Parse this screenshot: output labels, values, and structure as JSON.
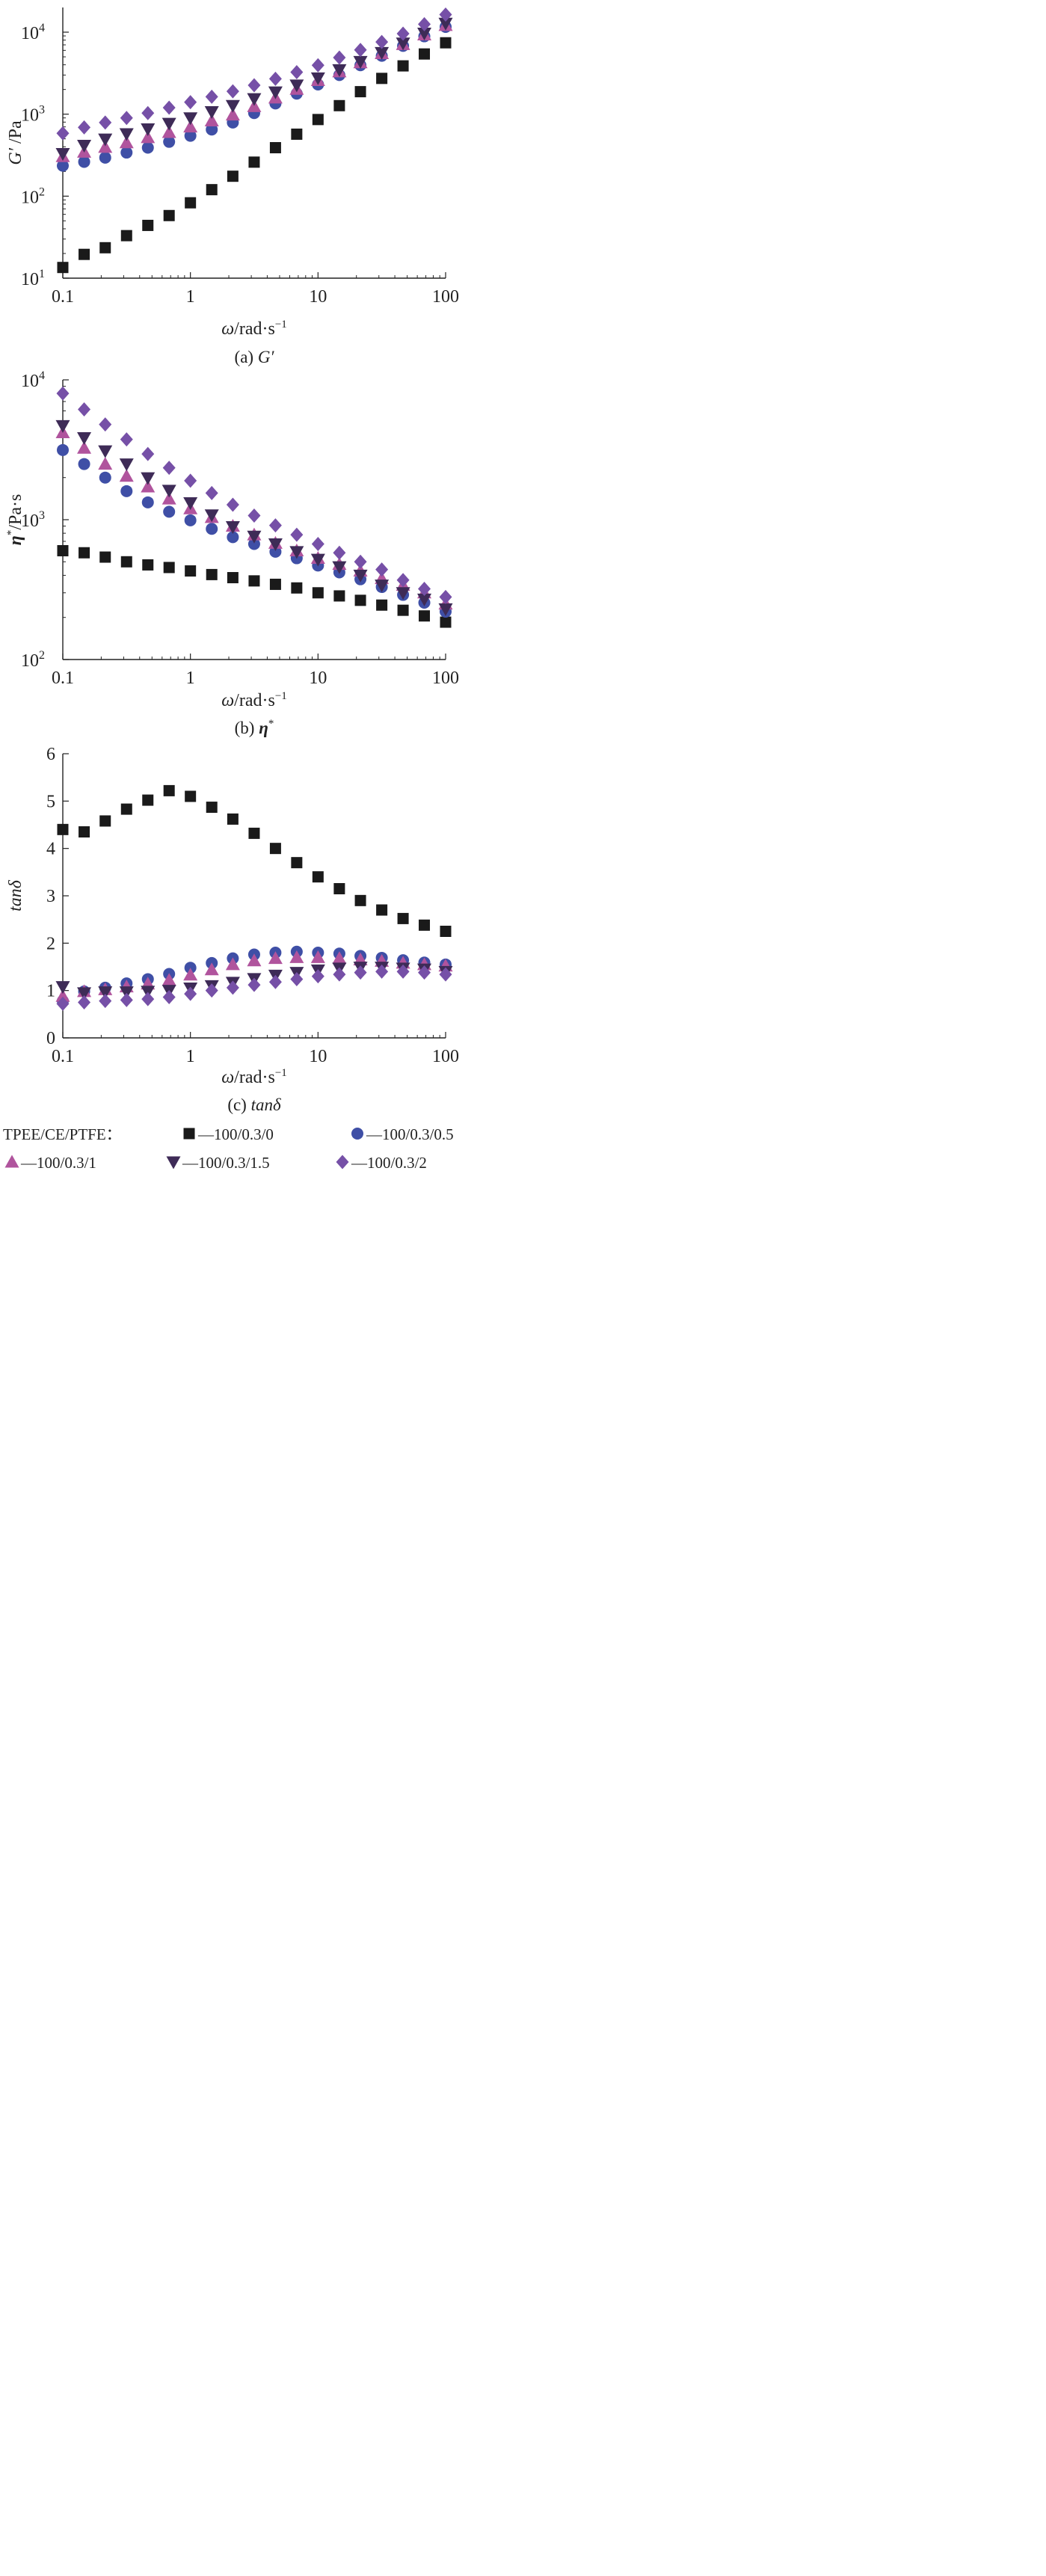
{
  "colors": {
    "TPEE-0": "#1a1a1a",
    "TPEE-05": "#3f4fa6",
    "TPEE-1": "#b0549d",
    "TPEE-15": "#3e2b57",
    "TPEE-2": "#7650a7"
  },
  "legend": {
    "prefix": "TPEE/CE/PTFE：",
    "dash": "—",
    "items": [
      {
        "label": "100/0.3/0",
        "marker": "square",
        "colorKey": "TPEE-0"
      },
      {
        "label": "100/0.3/0.5",
        "marker": "circle",
        "colorKey": "TPEE-05"
      },
      {
        "label": "100/0.3/1",
        "marker": "triangle-up",
        "colorKey": "TPEE-1"
      },
      {
        "label": "100/0.3/1.5",
        "marker": "triangle-down",
        "colorKey": "TPEE-15"
      },
      {
        "label": "100/0.3/2",
        "marker": "diamond",
        "colorKey": "TPEE-2"
      }
    ]
  },
  "chart_data": [
    {
      "id": "a",
      "type": "scatter",
      "caption_prefix": "(a) ",
      "caption_symbol": "G′",
      "xlabel_symbol": "ω",
      "xlabel_rest": "/rad·s",
      "xlabel_sup": "−1",
      "ylabel_symbol": "G′",
      "ylabel_rest": " /Pa",
      "xscale": "log",
      "yscale": "log",
      "xlim": [
        0.1,
        100
      ],
      "ylim": [
        10,
        20000
      ],
      "xticks": [
        {
          "v": 0.1,
          "label": "0.1"
        },
        {
          "v": 1,
          "label": "1"
        },
        {
          "v": 10,
          "label": "10"
        },
        {
          "v": 100,
          "label": "100"
        }
      ],
      "yticks": [
        {
          "v": 10,
          "base": "10",
          "exp": "1"
        },
        {
          "v": 100,
          "base": "10",
          "exp": "2"
        },
        {
          "v": 1000,
          "base": "10",
          "exp": "3"
        },
        {
          "v": 10000,
          "base": "10",
          "exp": "4"
        }
      ],
      "x": [
        0.1,
        0.147,
        0.215,
        0.316,
        0.464,
        0.681,
        1.0,
        1.47,
        2.15,
        3.16,
        4.64,
        6.81,
        10,
        14.7,
        21.5,
        31.6,
        46.4,
        68.1,
        100
      ],
      "series": [
        {
          "name": "100/0.3/0",
          "marker": "square",
          "colorKey": "TPEE-0",
          "values": [
            13.5,
            19.5,
            23.5,
            33,
            44,
            58,
            83,
            120,
            175,
            260,
            390,
            570,
            860,
            1270,
            1880,
            2730,
            3880,
            5420,
            7420
          ]
        },
        {
          "name": "100/0.3/0.5",
          "marker": "circle",
          "colorKey": "TPEE-05",
          "values": [
            235,
            262,
            295,
            340,
            390,
            460,
            545,
            650,
            790,
            1030,
            1350,
            1780,
            2300,
            3000,
            3950,
            5150,
            6800,
            8900,
            11600
          ]
        },
        {
          "name": "100/0.3/1",
          "marker": "triangle-up",
          "colorKey": "TPEE-1",
          "values": [
            305,
            345,
            395,
            450,
            520,
            600,
            700,
            830,
            980,
            1240,
            1580,
            2020,
            2580,
            3300,
            4250,
            5500,
            7100,
            9300,
            12100
          ]
        },
        {
          "name": "100/0.3/1.5",
          "marker": "triangle-down",
          "colorKey": "TPEE-15",
          "values": [
            330,
            415,
            495,
            575,
            660,
            770,
            900,
            1070,
            1270,
            1540,
            1860,
            2260,
            2760,
            3470,
            4380,
            5630,
            7330,
            9700,
            12800
          ]
        },
        {
          "name": "100/0.3/2",
          "marker": "diamond",
          "colorKey": "TPEE-2",
          "values": [
            585,
            690,
            790,
            900,
            1030,
            1200,
            1400,
            1630,
            1900,
            2250,
            2700,
            3250,
            3950,
            4900,
            6080,
            7600,
            9600,
            12500,
            16400
          ]
        }
      ]
    },
    {
      "id": "b",
      "type": "scatter",
      "caption_prefix": "(b) ",
      "caption_symbol": "η",
      "caption_sup": "*",
      "xlabel_symbol": "ω",
      "xlabel_rest": "/rad·s",
      "xlabel_sup": "−1",
      "ylabel_symbol": "η",
      "ylabel_sup": "*",
      "ylabel_rest": "/Pa·s",
      "xscale": "log",
      "yscale": "log",
      "xlim": [
        0.1,
        100
      ],
      "ylim": [
        100,
        10000
      ],
      "xticks": [
        {
          "v": 0.1,
          "label": "0.1"
        },
        {
          "v": 1,
          "label": "1"
        },
        {
          "v": 10,
          "label": "10"
        },
        {
          "v": 100,
          "label": "100"
        }
      ],
      "yticks": [
        {
          "v": 100,
          "base": "10",
          "exp": "2"
        },
        {
          "v": 1000,
          "base": "10",
          "exp": "3"
        },
        {
          "v": 10000,
          "base": "10",
          "exp": "4"
        }
      ],
      "x": [
        0.1,
        0.147,
        0.215,
        0.316,
        0.464,
        0.681,
        1.0,
        1.47,
        2.15,
        3.16,
        4.64,
        6.81,
        10,
        14.7,
        21.5,
        31.6,
        46.4,
        68.1,
        100
      ],
      "series": [
        {
          "name": "100/0.3/0",
          "marker": "square",
          "colorKey": "TPEE-0",
          "values": [
            600,
            580,
            540,
            500,
            475,
            455,
            430,
            405,
            385,
            365,
            345,
            325,
            300,
            285,
            265,
            245,
            225,
            205,
            185
          ]
        },
        {
          "name": "100/0.3/0.5",
          "marker": "circle",
          "colorKey": "TPEE-05",
          "values": [
            3150,
            2500,
            2000,
            1600,
            1330,
            1140,
            990,
            860,
            750,
            670,
            590,
            530,
            470,
            420,
            375,
            330,
            290,
            255,
            220
          ]
        },
        {
          "name": "100/0.3/1",
          "marker": "triangle-up",
          "colorKey": "TPEE-1",
          "values": [
            4200,
            3250,
            2500,
            2050,
            1720,
            1410,
            1200,
            1040,
            900,
            780,
            680,
            600,
            530,
            480,
            430,
            380,
            340,
            300,
            250
          ]
        },
        {
          "name": "100/0.3/1.5",
          "marker": "triangle-down",
          "colorKey": "TPEE-15",
          "values": [
            4700,
            3850,
            3100,
            2500,
            1990,
            1620,
            1320,
            1080,
            890,
            760,
            670,
            590,
            520,
            460,
            400,
            340,
            300,
            270,
            230
          ]
        },
        {
          "name": "100/0.3/2",
          "marker": "diamond",
          "colorKey": "TPEE-2",
          "values": [
            8000,
            6150,
            4800,
            3750,
            2950,
            2350,
            1900,
            1550,
            1280,
            1070,
            910,
            780,
            670,
            580,
            500,
            440,
            370,
            320,
            280
          ]
        }
      ]
    },
    {
      "id": "c",
      "type": "scatter",
      "caption_prefix": "(c) ",
      "caption_symbol": "tanδ",
      "xlabel_symbol": "ω",
      "xlabel_rest": "/rad·s",
      "xlabel_sup": "−1",
      "ylabel_symbol": "tanδ",
      "xscale": "log",
      "yscale": "linear",
      "xlim": [
        0.1,
        100
      ],
      "ylim": [
        0,
        6
      ],
      "xticks": [
        {
          "v": 0.1,
          "label": "0.1"
        },
        {
          "v": 1,
          "label": "1"
        },
        {
          "v": 10,
          "label": "10"
        },
        {
          "v": 100,
          "label": "100"
        }
      ],
      "yticks": [
        {
          "v": 0,
          "label": "0"
        },
        {
          "v": 1,
          "label": "1"
        },
        {
          "v": 2,
          "label": "2"
        },
        {
          "v": 3,
          "label": "3"
        },
        {
          "v": 4,
          "label": "4"
        },
        {
          "v": 5,
          "label": "5"
        },
        {
          "v": 6,
          "label": "6"
        }
      ],
      "x": [
        0.1,
        0.147,
        0.215,
        0.316,
        0.464,
        0.681,
        1.0,
        1.47,
        2.15,
        3.16,
        4.64,
        6.81,
        10,
        14.7,
        21.5,
        31.6,
        46.4,
        68.1,
        100
      ],
      "series": [
        {
          "name": "100/0.3/0",
          "marker": "square",
          "colorKey": "TPEE-0",
          "values": [
            4.4,
            4.35,
            4.58,
            4.83,
            5.02,
            5.22,
            5.1,
            4.87,
            4.62,
            4.32,
            4.0,
            3.7,
            3.4,
            3.15,
            2.9,
            2.7,
            2.52,
            2.38,
            2.25
          ]
        },
        {
          "name": "100/0.3/0.5",
          "marker": "circle",
          "colorKey": "TPEE-05",
          "values": [
            0.78,
            0.98,
            1.06,
            1.15,
            1.24,
            1.35,
            1.48,
            1.58,
            1.68,
            1.76,
            1.8,
            1.82,
            1.8,
            1.78,
            1.73,
            1.69,
            1.64,
            1.59,
            1.55
          ]
        },
        {
          "name": "100/0.3/1",
          "marker": "triangle-up",
          "colorKey": "TPEE-1",
          "values": [
            0.88,
            0.98,
            1.02,
            1.08,
            1.14,
            1.22,
            1.33,
            1.44,
            1.55,
            1.63,
            1.68,
            1.7,
            1.7,
            1.68,
            1.65,
            1.62,
            1.58,
            1.55,
            1.52
          ]
        },
        {
          "name": "100/0.3/1.5",
          "marker": "triangle-down",
          "colorKey": "TPEE-15",
          "values": [
            1.08,
            0.95,
            0.97,
            0.97,
            0.98,
            1.0,
            1.05,
            1.1,
            1.17,
            1.25,
            1.32,
            1.38,
            1.43,
            1.47,
            1.49,
            1.49,
            1.47,
            1.45,
            1.4
          ]
        },
        {
          "name": "100/0.3/2",
          "marker": "diamond",
          "colorKey": "TPEE-2",
          "values": [
            0.72,
            0.75,
            0.78,
            0.8,
            0.82,
            0.86,
            0.93,
            1.0,
            1.06,
            1.12,
            1.18,
            1.24,
            1.3,
            1.34,
            1.38,
            1.4,
            1.4,
            1.38,
            1.34
          ]
        }
      ]
    }
  ]
}
